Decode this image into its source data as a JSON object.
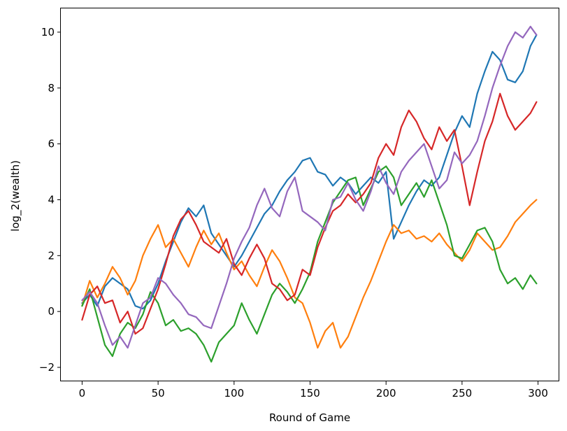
{
  "chart_data": {
    "type": "line",
    "title": "",
    "xlabel": "Round of Game",
    "ylabel": "log_2(wealth)",
    "xlim": [
      -14,
      314
    ],
    "ylim": [
      -2.5,
      10.85
    ],
    "xticks": [
      0,
      50,
      100,
      150,
      200,
      250,
      300
    ],
    "yticks": [
      -2,
      0,
      2,
      4,
      6,
      8,
      10
    ],
    "ytick_labels": [
      "−2",
      "0",
      "2",
      "4",
      "6",
      "8",
      "10"
    ],
    "grid": false,
    "legend": "none",
    "series": [
      {
        "color": "#1f77b4",
        "x": [
          0,
          5,
          10,
          15,
          20,
          25,
          30,
          35,
          40,
          45,
          50,
          55,
          60,
          65,
          70,
          75,
          80,
          85,
          90,
          95,
          100,
          105,
          110,
          115,
          120,
          125,
          130,
          135,
          140,
          145,
          150,
          155,
          160,
          165,
          170,
          175,
          180,
          185,
          190,
          195,
          200,
          205,
          210,
          215,
          220,
          225,
          230,
          235,
          240,
          245,
          250,
          255,
          260,
          265,
          270,
          275,
          280,
          285,
          290,
          295,
          299
        ],
        "values": [
          0.3,
          0.6,
          0.2,
          0.9,
          1.2,
          1.0,
          0.8,
          0.2,
          0.1,
          0.4,
          1.0,
          1.8,
          2.5,
          3.2,
          3.7,
          3.4,
          3.8,
          2.8,
          2.4,
          2.0,
          1.6,
          2.0,
          2.5,
          3.0,
          3.5,
          3.8,
          4.3,
          4.7,
          5.0,
          5.4,
          5.5,
          5.0,
          4.9,
          4.5,
          4.8,
          4.6,
          4.2,
          4.5,
          4.8,
          4.6,
          5.0,
          2.6,
          3.2,
          3.8,
          4.3,
          4.7,
          4.5,
          4.8,
          5.6,
          6.4,
          7.0,
          6.6,
          7.8,
          8.6,
          9.3,
          9.0,
          8.3,
          8.2,
          8.6,
          9.5,
          9.9
        ]
      },
      {
        "color": "#ff7f0e",
        "x": [
          0,
          5,
          10,
          15,
          20,
          25,
          30,
          35,
          40,
          45,
          50,
          55,
          60,
          65,
          70,
          75,
          80,
          85,
          90,
          95,
          100,
          105,
          110,
          115,
          120,
          125,
          130,
          135,
          140,
          145,
          150,
          155,
          160,
          165,
          170,
          175,
          180,
          185,
          190,
          195,
          200,
          205,
          210,
          215,
          220,
          225,
          230,
          235,
          240,
          245,
          250,
          255,
          260,
          265,
          270,
          275,
          280,
          285,
          290,
          295,
          299
        ],
        "values": [
          0.2,
          1.1,
          0.5,
          1.0,
          1.6,
          1.2,
          0.6,
          1.1,
          2.0,
          2.6,
          3.1,
          2.3,
          2.6,
          2.1,
          1.6,
          2.3,
          2.9,
          2.4,
          2.8,
          2.1,
          1.5,
          1.8,
          1.3,
          0.9,
          1.6,
          2.2,
          1.8,
          1.2,
          0.5,
          0.3,
          -0.4,
          -1.3,
          -0.7,
          -0.4,
          -1.3,
          -0.9,
          -0.2,
          0.5,
          1.1,
          1.8,
          2.5,
          3.1,
          2.8,
          2.9,
          2.6,
          2.7,
          2.5,
          2.8,
          2.4,
          2.1,
          1.8,
          2.2,
          2.8,
          2.5,
          2.2,
          2.3,
          2.7,
          3.2,
          3.5,
          3.8,
          4.0
        ]
      },
      {
        "color": "#2ca02c",
        "x": [
          0,
          5,
          10,
          15,
          20,
          25,
          30,
          35,
          40,
          45,
          50,
          55,
          60,
          65,
          70,
          75,
          80,
          85,
          90,
          95,
          100,
          105,
          110,
          115,
          120,
          125,
          130,
          135,
          140,
          145,
          150,
          155,
          160,
          165,
          170,
          175,
          180,
          185,
          190,
          195,
          200,
          205,
          210,
          215,
          220,
          225,
          230,
          235,
          240,
          245,
          250,
          255,
          260,
          265,
          270,
          275,
          280,
          285,
          290,
          295,
          299
        ],
        "values": [
          0.2,
          0.8,
          -0.2,
          -1.2,
          -1.6,
          -0.8,
          -0.4,
          -0.6,
          -0.1,
          0.7,
          0.3,
          -0.5,
          -0.3,
          -0.7,
          -0.6,
          -0.8,
          -1.2,
          -1.8,
          -1.1,
          -0.8,
          -0.5,
          0.3,
          -0.3,
          -0.8,
          -0.1,
          0.6,
          1.0,
          0.7,
          0.3,
          0.8,
          1.4,
          2.5,
          3.2,
          3.9,
          4.3,
          4.7,
          4.8,
          3.8,
          4.4,
          5.0,
          5.2,
          4.8,
          3.8,
          4.2,
          4.6,
          4.1,
          4.7,
          3.9,
          3.1,
          2.0,
          1.9,
          2.4,
          2.9,
          3.0,
          2.5,
          1.5,
          1.0,
          1.2,
          0.8,
          1.3,
          1.0
        ]
      },
      {
        "color": "#d62728",
        "x": [
          0,
          5,
          10,
          15,
          20,
          25,
          30,
          35,
          40,
          45,
          50,
          55,
          60,
          65,
          70,
          75,
          80,
          85,
          90,
          95,
          100,
          105,
          110,
          115,
          120,
          125,
          130,
          135,
          140,
          145,
          150,
          155,
          160,
          165,
          170,
          175,
          180,
          185,
          190,
          195,
          200,
          205,
          210,
          215,
          220,
          225,
          230,
          235,
          240,
          245,
          250,
          255,
          260,
          265,
          270,
          275,
          280,
          285,
          290,
          295,
          299
        ],
        "values": [
          -0.3,
          0.6,
          0.9,
          0.3,
          0.4,
          -0.4,
          0.0,
          -0.8,
          -0.6,
          0.1,
          0.8,
          1.7,
          2.7,
          3.3,
          3.6,
          3.1,
          2.5,
          2.3,
          2.1,
          2.6,
          1.7,
          1.3,
          1.9,
          2.4,
          1.9,
          1.0,
          0.8,
          0.4,
          0.6,
          1.5,
          1.3,
          2.3,
          3.0,
          3.6,
          3.8,
          4.2,
          3.9,
          4.2,
          4.6,
          5.5,
          6.0,
          5.6,
          6.6,
          7.2,
          6.8,
          6.2,
          5.8,
          6.6,
          6.1,
          6.5,
          5.2,
          3.8,
          5.0,
          6.1,
          6.8,
          7.8,
          7.0,
          6.5,
          6.8,
          7.1,
          7.5
        ]
      },
      {
        "color": "#9467bd",
        "x": [
          0,
          5,
          10,
          15,
          20,
          25,
          30,
          35,
          40,
          45,
          50,
          55,
          60,
          65,
          70,
          75,
          80,
          85,
          90,
          95,
          100,
          105,
          110,
          115,
          120,
          125,
          130,
          135,
          140,
          145,
          150,
          155,
          160,
          165,
          170,
          175,
          180,
          185,
          190,
          195,
          200,
          205,
          210,
          215,
          220,
          225,
          230,
          235,
          240,
          245,
          250,
          255,
          260,
          265,
          270,
          275,
          280,
          285,
          290,
          295,
          299
        ],
        "values": [
          0.4,
          0.7,
          0.3,
          -0.5,
          -1.2,
          -0.9,
          -1.3,
          -0.5,
          0.3,
          0.5,
          1.2,
          1.0,
          0.6,
          0.3,
          -0.1,
          -0.2,
          -0.5,
          -0.6,
          0.2,
          1.0,
          1.9,
          2.5,
          3.0,
          3.8,
          4.4,
          3.7,
          3.4,
          4.3,
          4.8,
          3.6,
          3.4,
          3.2,
          2.9,
          4.0,
          4.1,
          4.6,
          4.0,
          3.6,
          4.3,
          5.2,
          4.6,
          4.2,
          5.0,
          5.4,
          5.7,
          6.0,
          5.2,
          4.4,
          4.7,
          5.7,
          5.3,
          5.6,
          6.1,
          7.0,
          8.0,
          8.8,
          9.5,
          10.0,
          9.8,
          10.2,
          9.9
        ]
      }
    ]
  }
}
